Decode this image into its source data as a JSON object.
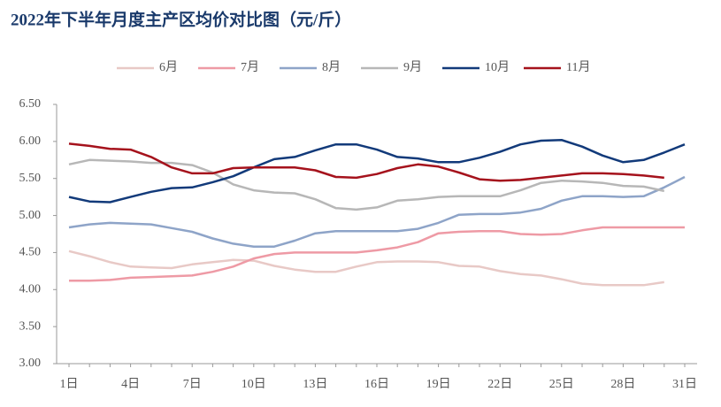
{
  "chart_data": {
    "type": "line",
    "title": "2022年下半年月度主产区均价对比图（元/斤）",
    "categories": [
      "1日",
      null,
      null,
      "4日",
      null,
      null,
      "7日",
      null,
      null,
      "10日",
      null,
      null,
      "13日",
      null,
      null,
      "16日",
      null,
      null,
      "19日",
      null,
      null,
      "22日",
      null,
      null,
      "25日",
      null,
      null,
      "28日",
      null,
      null,
      "31日"
    ],
    "series": [
      {
        "name": "6月",
        "color": "#e8c9c6",
        "values": [
          4.52,
          4.45,
          4.37,
          4.31,
          4.3,
          4.29,
          4.34,
          4.37,
          4.4,
          4.39,
          4.32,
          4.27,
          4.24,
          4.24,
          4.31,
          4.37,
          4.38,
          4.38,
          4.37,
          4.32,
          4.31,
          4.25,
          4.21,
          4.19,
          4.14,
          4.08,
          4.06,
          4.06,
          4.06,
          4.1,
          null
        ]
      },
      {
        "name": "7月",
        "color": "#ee9aa5",
        "values": [
          4.12,
          4.12,
          4.13,
          4.16,
          4.17,
          4.18,
          4.19,
          4.24,
          4.31,
          4.42,
          4.48,
          4.5,
          4.5,
          4.5,
          4.5,
          4.53,
          4.57,
          4.64,
          4.76,
          4.78,
          4.79,
          4.79,
          4.75,
          4.74,
          4.75,
          4.8,
          4.84,
          4.84,
          4.84,
          4.84,
          4.84
        ]
      },
      {
        "name": "8月",
        "color": "#8ea4c8",
        "values": [
          4.84,
          4.88,
          4.9,
          4.89,
          4.88,
          4.83,
          4.78,
          4.69,
          4.62,
          4.58,
          4.58,
          4.66,
          4.76,
          4.79,
          4.79,
          4.79,
          4.79,
          4.82,
          4.9,
          5.01,
          5.02,
          5.02,
          5.04,
          5.09,
          5.2,
          5.26,
          5.26,
          5.25,
          5.26,
          5.38,
          5.52
        ]
      },
      {
        "name": "9月",
        "color": "#b7b7b7",
        "values": [
          5.69,
          5.75,
          5.74,
          5.73,
          5.71,
          5.71,
          5.68,
          5.58,
          5.42,
          5.34,
          5.31,
          5.3,
          5.22,
          5.1,
          5.08,
          5.11,
          5.2,
          5.22,
          5.25,
          5.26,
          5.26,
          5.26,
          5.34,
          5.44,
          5.47,
          5.46,
          5.44,
          5.4,
          5.39,
          5.33,
          null
        ]
      },
      {
        "name": "10月",
        "color": "#123a7a",
        "values": [
          5.25,
          5.19,
          5.18,
          5.25,
          5.32,
          5.37,
          5.38,
          5.45,
          5.53,
          5.65,
          5.76,
          5.79,
          5.88,
          5.96,
          5.96,
          5.89,
          5.79,
          5.77,
          5.72,
          5.72,
          5.78,
          5.86,
          5.96,
          6.01,
          6.02,
          5.93,
          5.81,
          5.72,
          5.75,
          5.85,
          5.96
        ]
      },
      {
        "name": "11月",
        "color": "#a5121c",
        "values": [
          5.97,
          5.94,
          5.9,
          5.89,
          5.79,
          5.65,
          5.57,
          5.57,
          5.64,
          5.65,
          5.65,
          5.65,
          5.61,
          5.52,
          5.51,
          5.56,
          5.64,
          5.69,
          5.66,
          5.58,
          5.49,
          5.47,
          5.48,
          5.51,
          5.54,
          5.57,
          5.57,
          5.56,
          5.54,
          5.51,
          null
        ]
      }
    ],
    "ylim": [
      3,
      6.5
    ],
    "yticks": [
      {
        "value": 3,
        "label": "3.00"
      },
      {
        "value": 3.5,
        "label": "3.50"
      },
      {
        "value": 4,
        "label": "4.00"
      },
      {
        "value": 4.5,
        "label": "4.50"
      },
      {
        "value": 5,
        "label": "5.00"
      },
      {
        "value": 5.5,
        "label": "5.50"
      },
      {
        "value": 6,
        "label": "6.00"
      },
      {
        "value": 6.5,
        "label": "6.50"
      }
    ],
    "grid": false
  }
}
